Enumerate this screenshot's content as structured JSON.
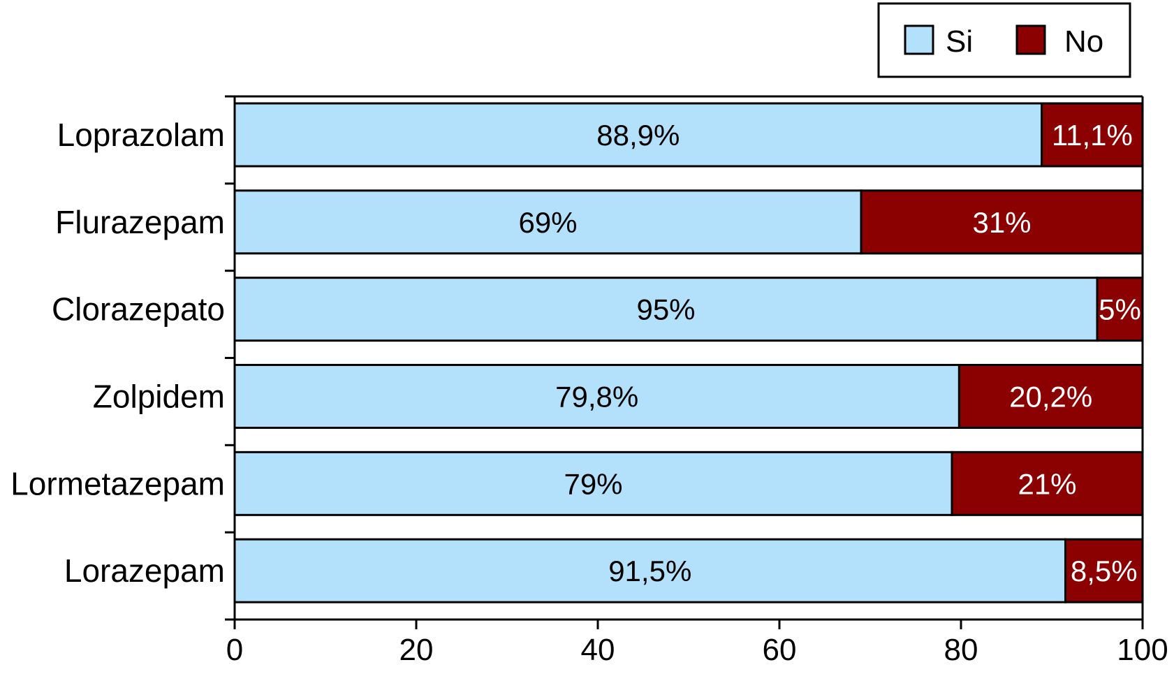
{
  "chart_data": {
    "type": "bar",
    "orientation": "horizontal",
    "stacked": true,
    "categories": [
      "Loprazolam",
      "Flurazepam",
      "Clorazepato",
      "Zolpidem",
      "Lormetazepam",
      "Lorazepam"
    ],
    "series": [
      {
        "name": "Si",
        "color": "#b3e0fa",
        "values": [
          88.9,
          69,
          95,
          79.8,
          79,
          91.5
        ],
        "labels": [
          "88,9%",
          "69%",
          "95%",
          "79,8%",
          "79%",
          "91,5%"
        ],
        "label_color": "#000000"
      },
      {
        "name": "No",
        "color": "#8b0000",
        "values": [
          11.1,
          31,
          5,
          20.2,
          21,
          8.5
        ],
        "labels": [
          "11,1%",
          "31%",
          "5%",
          "20,2%",
          "21%",
          "8,5%"
        ],
        "label_color": "#ffffff"
      }
    ],
    "xlim": [
      0,
      100
    ],
    "xticks": [
      "0",
      "20",
      "40",
      "60",
      "80",
      "100"
    ],
    "title": "",
    "xlabel": "",
    "ylabel": "",
    "grid": false,
    "legend_position": "top-right"
  }
}
